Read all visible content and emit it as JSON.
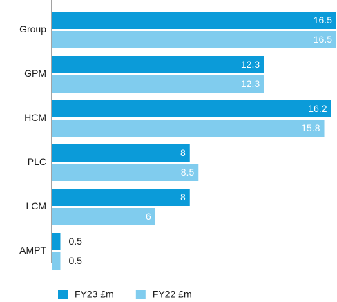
{
  "chart_data": {
    "type": "hbar",
    "categories": [
      "Group",
      "GPM",
      "HCM",
      "PLC",
      "LCM",
      "AMPT"
    ],
    "series": [
      {
        "name": "FY23 £m",
        "color": "#0b9bd9",
        "values": [
          16.5,
          12.3,
          16.2,
          8,
          8,
          0.5
        ]
      },
      {
        "name": "FY22 £m",
        "color": "#80ccee",
        "values": [
          16.5,
          12.3,
          15.8,
          8.5,
          6,
          0.5
        ]
      }
    ],
    "xlim": [
      0,
      16.5
    ]
  }
}
